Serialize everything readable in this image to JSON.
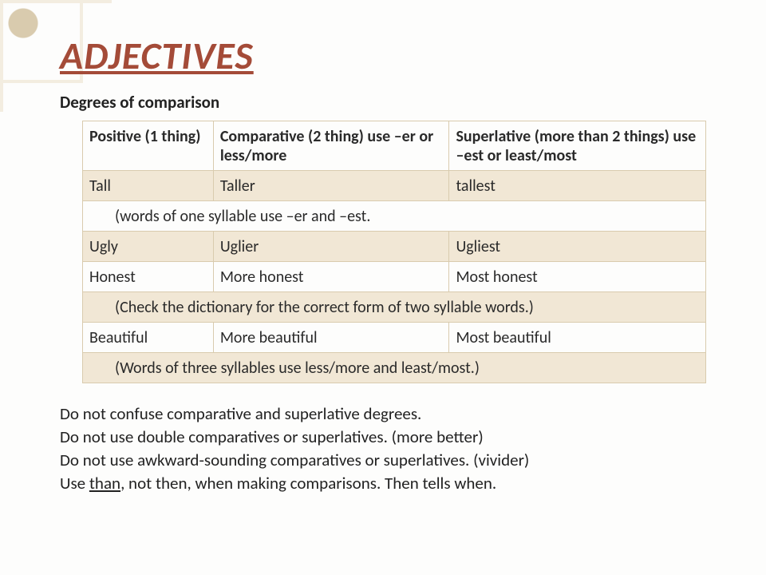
{
  "title": "ADJECTIVES",
  "subtitle": "Degrees of comparison",
  "table": {
    "header": {
      "c1": "Positive (1 thing)",
      "c2": "Comparative (2 thing) use –er or less/more",
      "c3": "Superlative (more than 2 things) use –est or least/most"
    },
    "r_tall": {
      "c1": "Tall",
      "c2": "Taller",
      "c3": "tallest"
    },
    "note1": "(words of one syllable use –er and –est.",
    "r_ugly": {
      "c1": "Ugly",
      "c2": "Uglier",
      "c3": "Ugliest"
    },
    "r_honest": {
      "c1": "Honest",
      "c2": "More honest",
      "c3": "Most honest"
    },
    "note2": "(Check the dictionary for the correct form of two syllable words.)",
    "r_beautiful": {
      "c1": "Beautiful",
      "c2": "More beautiful",
      "c3": "Most beautiful"
    },
    "note3": "(Words of three syllables use less/more and least/most.)"
  },
  "notes": {
    "l1": "Do not confuse comparative and superlative degrees.",
    "l2": "Do not use double comparatives or superlatives. (more better)",
    "l3": "Do not use awkward-sounding comparatives or superlatives. (vivider)",
    "l4a": "Use ",
    "l4_than": "than",
    "l4b": ", not then, when making comparisons.  Then tells when."
  },
  "colors": {
    "accent": "#a44b38",
    "shade": "#f1e7d5",
    "border": "#d9cbae",
    "bg": "#fdfdfc"
  }
}
